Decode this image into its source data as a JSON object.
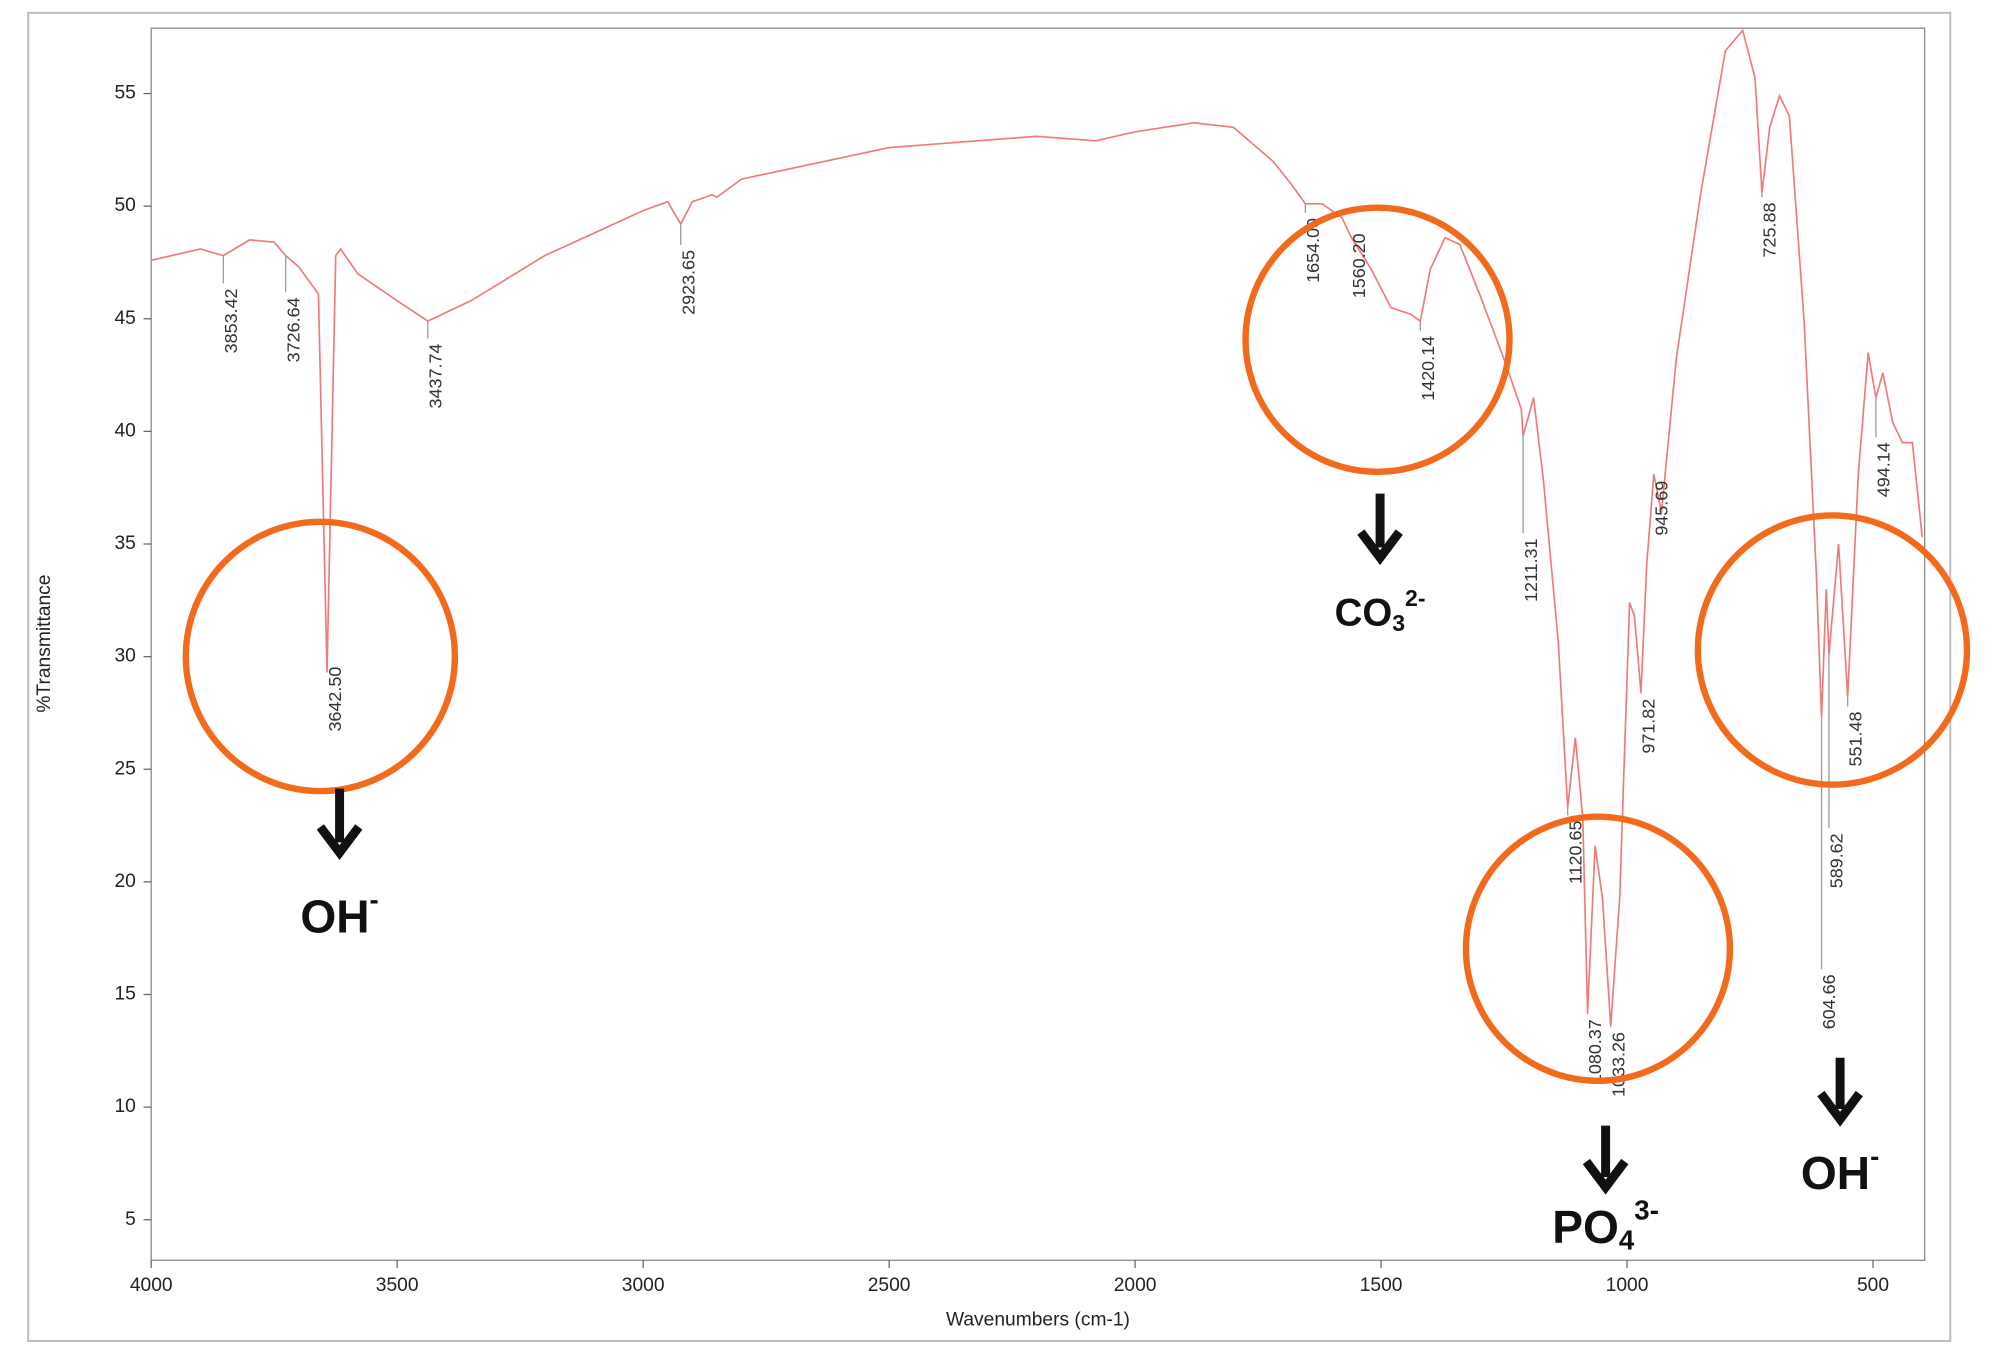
{
  "chart_data": {
    "type": "line",
    "xlabel": "Wavenumbers (cm-1)",
    "ylabel": "%Transmittance",
    "color": "#f07a7a",
    "x": [
      4000,
      3900,
      3853.42,
      3800,
      3750,
      3726.64,
      3700,
      3660,
      3642.5,
      3625,
      3615,
      3580,
      3500,
      3437.74,
      3350,
      3200,
      3000,
      2950,
      2923.65,
      2900,
      2860,
      2850,
      2800,
      2500,
      2200,
      2080,
      2000,
      1880,
      1800,
      1720,
      1680,
      1654,
      1620,
      1580,
      1560.2,
      1520,
      1480,
      1440,
      1420.14,
      1400,
      1370,
      1340,
      1300,
      1250,
      1215,
      1211.31,
      1190,
      1170,
      1140,
      1120.65,
      1105,
      1090,
      1080.37,
      1065,
      1050,
      1033.26,
      1015,
      995,
      985,
      971.82,
      960,
      945.69,
      930,
      900,
      850,
      800,
      765,
      740,
      725.88,
      710,
      690,
      670,
      640,
      615,
      604.66,
      595,
      589.62,
      570,
      551.48,
      530,
      510,
      494.14,
      480,
      460,
      440,
      420,
      400
    ],
    "values": [
      47.6,
      48.1,
      47.8,
      48.5,
      48.4,
      47.8,
      47.3,
      46.1,
      29.3,
      47.8,
      48.1,
      47.0,
      45.8,
      44.9,
      45.8,
      47.8,
      49.8,
      50.2,
      49.2,
      50.2,
      50.5,
      50.4,
      51.2,
      52.6,
      53.1,
      52.9,
      53.3,
      53.7,
      53.5,
      52.0,
      50.9,
      50.1,
      50.1,
      49.5,
      48.6,
      47.2,
      45.5,
      45.2,
      44.9,
      47.2,
      48.6,
      48.3,
      46.1,
      43.2,
      41.0,
      39.8,
      41.5,
      37.8,
      30.7,
      23.3,
      26.4,
      22.8,
      14.2,
      21.6,
      19.3,
      13.6,
      19.3,
      32.4,
      31.8,
      28.4,
      34.1,
      38.1,
      36.4,
      43.2,
      50.6,
      56.9,
      57.8,
      55.7,
      50.6,
      53.5,
      54.9,
      54.0,
      44.9,
      33.6,
      27.3,
      33.0,
      30.1,
      35.0,
      28.2,
      38.1,
      43.5,
      41.5,
      42.6,
      40.4,
      39.5,
      39.5,
      35.3
    ],
    "xlim": [
      4000,
      395
    ],
    "ylim": [
      3.2,
      57.9
    ],
    "xticks": [
      4000,
      3500,
      3000,
      2500,
      2000,
      1500,
      1000,
      500
    ],
    "yticks": [
      5,
      10,
      15,
      20,
      25,
      30,
      35,
      40,
      45,
      50,
      55
    ],
    "peaks": [
      {
        "x": 3853.42,
        "label": "3853.42"
      },
      {
        "x": 3726.64,
        "label": "3726.64"
      },
      {
        "x": 3642.5,
        "label": "3642.50"
      },
      {
        "x": 3437.74,
        "label": "3437.74"
      },
      {
        "x": 2923.65,
        "label": "2923.65"
      },
      {
        "x": 1654,
        "label": "1654.00"
      },
      {
        "x": 1560.2,
        "label": "1560.20"
      },
      {
        "x": 1420.14,
        "label": "1420.14"
      },
      {
        "x": 1211.31,
        "label": "1211.31"
      },
      {
        "x": 1120.65,
        "label": "1120.65"
      },
      {
        "x": 1080.37,
        "label": "1080.37"
      },
      {
        "x": 1033.26,
        "label": "1033.26"
      },
      {
        "x": 971.82,
        "label": "971.82"
      },
      {
        "x": 945.69,
        "label": "945.69"
      },
      {
        "x": 725.88,
        "label": "725.88"
      },
      {
        "x": 604.66,
        "label": "604.66"
      },
      {
        "x": 589.62,
        "label": "589.62"
      },
      {
        "x": 551.48,
        "label": "551.48"
      },
      {
        "x": 494.14,
        "label": "494.14"
      }
    ],
    "annotations": [
      {
        "text": "OH",
        "sup": "-"
      },
      {
        "text": "CO",
        "sub": "3",
        "sup": "2-"
      },
      {
        "text": "PO",
        "sub": "4",
        "sup": "3-"
      },
      {
        "text": "OH",
        "sup": "-"
      }
    ]
  }
}
